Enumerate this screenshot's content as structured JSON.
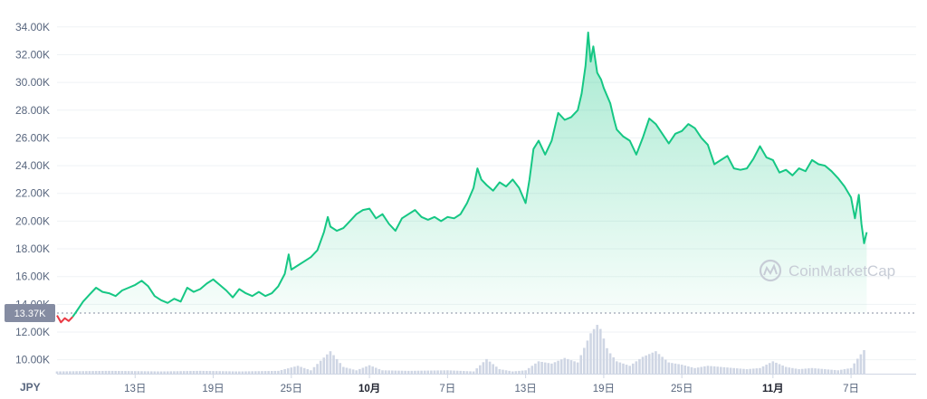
{
  "currency_label": "JPY",
  "price_tag": "13.37K",
  "watermark": "CoinMarketCap",
  "colors": {
    "up": "#16c784",
    "down": "#ea3943",
    "grid": "#eff2f5",
    "volume": "#cfd6e4",
    "baseline": "#858ca2"
  },
  "chart_data": {
    "type": "line",
    "ylim": [
      9000,
      34900
    ],
    "yticks": [
      10000,
      12000,
      14000,
      16000,
      18000,
      20000,
      22000,
      24000,
      26000,
      28000,
      30000,
      32000,
      34000
    ],
    "ytick_labels": [
      "10.00K",
      "12.00K",
      "14.00K",
      "16.00K",
      "18.00K",
      "20.00K",
      "22.00K",
      "24.00K",
      "26.00K",
      "28.00K",
      "30.00K",
      "32.00K",
      "34.00K"
    ],
    "xlim": [
      0,
      66
    ],
    "xticks": [
      {
        "day": 6,
        "label": "13日",
        "bold": false
      },
      {
        "day": 12,
        "label": "19日",
        "bold": false
      },
      {
        "day": 18,
        "label": "25日",
        "bold": false
      },
      {
        "day": 24,
        "label": "10月",
        "bold": true
      },
      {
        "day": 30,
        "label": "7日",
        "bold": false
      },
      {
        "day": 36,
        "label": "13日",
        "bold": false
      },
      {
        "day": 42,
        "label": "19日",
        "bold": false
      },
      {
        "day": 48,
        "label": "25日",
        "bold": false
      },
      {
        "day": 55,
        "label": "11月",
        "bold": true
      },
      {
        "day": 61,
        "label": "7日",
        "bold": false
      }
    ],
    "reference_price": 13370,
    "series": [
      {
        "points": [
          [
            0,
            13200
          ],
          [
            0.3,
            12700
          ],
          [
            0.6,
            13000
          ],
          [
            0.9,
            12800
          ],
          [
            1.2,
            13100
          ],
          [
            1.5,
            13500
          ],
          [
            2,
            14200
          ],
          [
            2.5,
            14700
          ],
          [
            3,
            15200
          ],
          [
            3.5,
            14900
          ],
          [
            4,
            14800
          ],
          [
            4.5,
            14600
          ],
          [
            5,
            15000
          ],
          [
            5.5,
            15200
          ],
          [
            6,
            15400
          ],
          [
            6.5,
            15700
          ],
          [
            7,
            15300
          ],
          [
            7.5,
            14600
          ],
          [
            8,
            14300
          ],
          [
            8.5,
            14100
          ],
          [
            9,
            14400
          ],
          [
            9.5,
            14200
          ],
          [
            10,
            15200
          ],
          [
            10.5,
            14900
          ],
          [
            11,
            15100
          ],
          [
            11.5,
            15500
          ],
          [
            12,
            15800
          ],
          [
            12.5,
            15400
          ],
          [
            13,
            15000
          ],
          [
            13.5,
            14500
          ],
          [
            14,
            15100
          ],
          [
            14.5,
            14800
          ],
          [
            15,
            14600
          ],
          [
            15.5,
            14900
          ],
          [
            16,
            14600
          ],
          [
            16.5,
            14800
          ],
          [
            17,
            15300
          ],
          [
            17.5,
            16200
          ],
          [
            17.8,
            17600
          ],
          [
            18,
            16500
          ],
          [
            18.5,
            16800
          ],
          [
            19,
            17100
          ],
          [
            19.5,
            17400
          ],
          [
            20,
            17900
          ],
          [
            20.5,
            19200
          ],
          [
            20.8,
            20300
          ],
          [
            21,
            19600
          ],
          [
            21.5,
            19300
          ],
          [
            22,
            19500
          ],
          [
            22.5,
            20000
          ],
          [
            23,
            20500
          ],
          [
            23.5,
            20800
          ],
          [
            24,
            20900
          ],
          [
            24.5,
            20200
          ],
          [
            25,
            20500
          ],
          [
            25.5,
            19800
          ],
          [
            26,
            19300
          ],
          [
            26.5,
            20200
          ],
          [
            27,
            20500
          ],
          [
            27.5,
            20800
          ],
          [
            28,
            20300
          ],
          [
            28.5,
            20100
          ],
          [
            29,
            20300
          ],
          [
            29.5,
            20000
          ],
          [
            30,
            20300
          ],
          [
            30.5,
            20200
          ],
          [
            31,
            20500
          ],
          [
            31.5,
            21300
          ],
          [
            32,
            22400
          ],
          [
            32.3,
            23800
          ],
          [
            32.6,
            23000
          ],
          [
            33,
            22600
          ],
          [
            33.5,
            22200
          ],
          [
            34,
            22800
          ],
          [
            34.5,
            22500
          ],
          [
            35,
            23000
          ],
          [
            35.5,
            22400
          ],
          [
            36,
            21300
          ],
          [
            36.3,
            23000
          ],
          [
            36.6,
            25200
          ],
          [
            37,
            25800
          ],
          [
            37.5,
            24800
          ],
          [
            38,
            25800
          ],
          [
            38.5,
            27800
          ],
          [
            39,
            27300
          ],
          [
            39.5,
            27500
          ],
          [
            40,
            28000
          ],
          [
            40.3,
            29200
          ],
          [
            40.6,
            31200
          ],
          [
            40.8,
            33600
          ],
          [
            41,
            31500
          ],
          [
            41.2,
            32600
          ],
          [
            41.5,
            30700
          ],
          [
            41.8,
            30200
          ],
          [
            42,
            29600
          ],
          [
            42.5,
            28500
          ],
          [
            42.8,
            27300
          ],
          [
            43,
            26600
          ],
          [
            43.5,
            26100
          ],
          [
            44,
            25800
          ],
          [
            44.5,
            24800
          ],
          [
            45,
            26000
          ],
          [
            45.5,
            27400
          ],
          [
            46,
            27000
          ],
          [
            46.5,
            26300
          ],
          [
            47,
            25600
          ],
          [
            47.5,
            26300
          ],
          [
            48,
            26500
          ],
          [
            48.5,
            27000
          ],
          [
            49,
            26700
          ],
          [
            49.5,
            26000
          ],
          [
            50,
            25500
          ],
          [
            50.5,
            24100
          ],
          [
            51,
            24400
          ],
          [
            51.5,
            24700
          ],
          [
            52,
            23800
          ],
          [
            52.5,
            23700
          ],
          [
            53,
            23800
          ],
          [
            53.5,
            24500
          ],
          [
            54,
            25400
          ],
          [
            54.5,
            24600
          ],
          [
            55,
            24400
          ],
          [
            55.5,
            23500
          ],
          [
            56,
            23700
          ],
          [
            56.5,
            23300
          ],
          [
            57,
            23800
          ],
          [
            57.5,
            23600
          ],
          [
            58,
            24400
          ],
          [
            58.5,
            24100
          ],
          [
            59,
            24000
          ],
          [
            59.5,
            23600
          ],
          [
            60,
            23100
          ],
          [
            60.5,
            22500
          ],
          [
            61,
            21700
          ],
          [
            61.3,
            20200
          ],
          [
            61.6,
            21900
          ],
          [
            61.8,
            19800
          ],
          [
            62,
            18400
          ],
          [
            62.2,
            19200
          ]
        ]
      }
    ],
    "volume": [
      [
        0,
        0.04
      ],
      [
        4,
        0.05
      ],
      [
        8,
        0.04
      ],
      [
        11,
        0.05
      ],
      [
        14,
        0.04
      ],
      [
        17,
        0.05
      ],
      [
        18.5,
        0.14
      ],
      [
        19.5,
        0.06
      ],
      [
        21,
        0.4
      ],
      [
        22,
        0.12
      ],
      [
        23,
        0.06
      ],
      [
        24,
        0.15
      ],
      [
        25,
        0.06
      ],
      [
        27,
        0.05
      ],
      [
        30,
        0.06
      ],
      [
        32,
        0.04
      ],
      [
        33,
        0.26
      ],
      [
        34,
        0.08
      ],
      [
        35,
        0.04
      ],
      [
        36,
        0.06
      ],
      [
        37,
        0.22
      ],
      [
        38,
        0.18
      ],
      [
        39,
        0.28
      ],
      [
        40,
        0.2
      ],
      [
        41,
        0.72
      ],
      [
        41.6,
        0.9
      ],
      [
        42.3,
        0.42
      ],
      [
        43,
        0.22
      ],
      [
        44,
        0.14
      ],
      [
        45,
        0.3
      ],
      [
        46,
        0.4
      ],
      [
        47,
        0.2
      ],
      [
        48,
        0.16
      ],
      [
        49,
        0.1
      ],
      [
        50,
        0.14
      ],
      [
        51,
        0.12
      ],
      [
        52,
        0.1
      ],
      [
        53,
        0.08
      ],
      [
        54,
        0.1
      ],
      [
        55,
        0.22
      ],
      [
        56,
        0.12
      ],
      [
        57,
        0.08
      ],
      [
        58,
        0.1
      ],
      [
        59,
        0.08
      ],
      [
        60,
        0.06
      ],
      [
        61,
        0.1
      ],
      [
        61.6,
        0.3
      ],
      [
        62,
        0.42
      ],
      [
        62.2,
        0.5
      ]
    ]
  }
}
